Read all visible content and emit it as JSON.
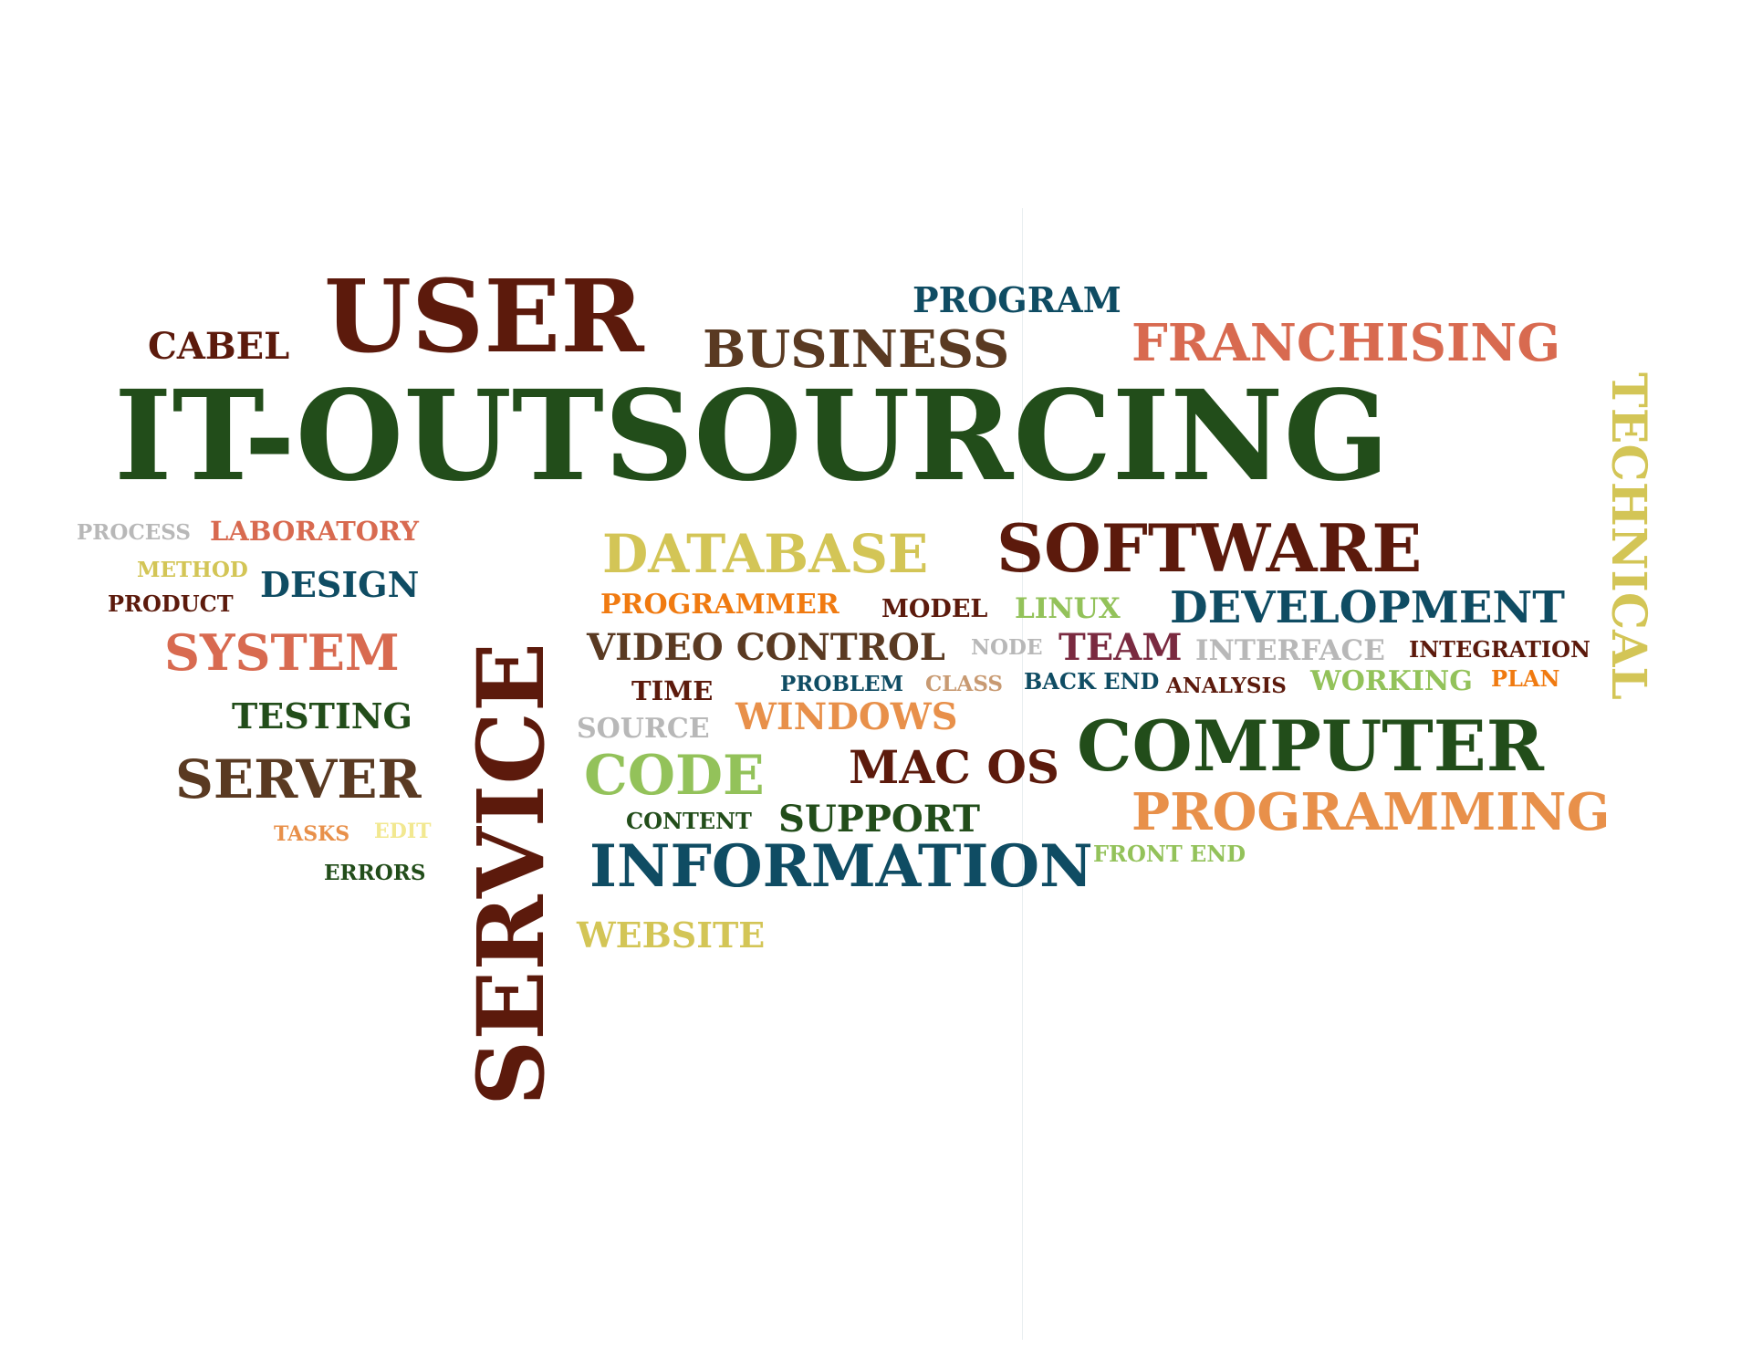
{
  "colors": {
    "dark_red": "#5c1a0c",
    "brown": "#5a3a22",
    "dark_green": "#224d1a",
    "teal": "#0f4c63",
    "salmon": "#d86a50",
    "orange": "#f07a10",
    "light_orange": "#e8904a",
    "yellow": "#d3c556",
    "light_green": "#93c25a",
    "gray": "#b8b8b8",
    "tan": "#c89a72",
    "maroon": "#7a2a40",
    "pale_yellow": "#f2e890"
  },
  "words": [
    {
      "id": "user",
      "text": "USER",
      "color": "#5c1a0c"
    },
    {
      "id": "program",
      "text": "PROGRAM",
      "color": "#0f4c63"
    },
    {
      "id": "cabel",
      "text": "CABEL",
      "color": "#5c1a0c"
    },
    {
      "id": "business",
      "text": "BUSINESS",
      "color": "#5a3a22"
    },
    {
      "id": "franchising",
      "text": "FRANCHISING",
      "color": "#d86a50"
    },
    {
      "id": "it-outsourcing",
      "text": "IT-OUTSOURCING",
      "color": "#224d1a"
    },
    {
      "id": "technical",
      "text": "TECHNICAL",
      "color": "#d3c556"
    },
    {
      "id": "process",
      "text": "PROCESS",
      "color": "#b8b8b8"
    },
    {
      "id": "laboratory",
      "text": "LABORATORY",
      "color": "#d86a50"
    },
    {
      "id": "method",
      "text": "METHOD",
      "color": "#d3c556"
    },
    {
      "id": "design",
      "text": "DESIGN",
      "color": "#0f4c63"
    },
    {
      "id": "product",
      "text": "PRODUCT",
      "color": "#5c1a0c"
    },
    {
      "id": "system",
      "text": "SYSTEM",
      "color": "#d86a50"
    },
    {
      "id": "testing",
      "text": "TESTING",
      "color": "#224d1a"
    },
    {
      "id": "server",
      "text": "SERVER",
      "color": "#5a3a22"
    },
    {
      "id": "tasks",
      "text": "TASKS",
      "color": "#e8904a"
    },
    {
      "id": "edit",
      "text": "EDIT",
      "color": "#f2e890"
    },
    {
      "id": "errors",
      "text": "ERRORS",
      "color": "#224d1a"
    },
    {
      "id": "service",
      "text": "SERVICE",
      "color": "#5c1a0c"
    },
    {
      "id": "database",
      "text": "DATABASE",
      "color": "#d3c556"
    },
    {
      "id": "software",
      "text": "SOFTWARE",
      "color": "#5c1a0c"
    },
    {
      "id": "programmer",
      "text": "PROGRAMMER",
      "color": "#f07a10"
    },
    {
      "id": "model",
      "text": "MODEL",
      "color": "#5c1a0c"
    },
    {
      "id": "linux",
      "text": "LINUX",
      "color": "#93c25a"
    },
    {
      "id": "development",
      "text": "DEVELOPMENT",
      "color": "#0f4c63"
    },
    {
      "id": "video-control",
      "text": "VIDEO CONTROL",
      "color": "#5a3a22"
    },
    {
      "id": "node",
      "text": "NODE",
      "color": "#b8b8b8"
    },
    {
      "id": "team",
      "text": "TEAM",
      "color": "#7a2a40"
    },
    {
      "id": "interface",
      "text": "INTERFACE",
      "color": "#b8b8b8"
    },
    {
      "id": "integration",
      "text": "INTEGRATION",
      "color": "#5c1a0c"
    },
    {
      "id": "time",
      "text": "TIME",
      "color": "#5c1a0c"
    },
    {
      "id": "problem",
      "text": "PROBLEM",
      "color": "#0f4c63"
    },
    {
      "id": "class",
      "text": "CLASS",
      "color": "#c89a72"
    },
    {
      "id": "back-end",
      "text": "BACK END",
      "color": "#0f4c63"
    },
    {
      "id": "analysis",
      "text": "ANALYSIS",
      "color": "#5c1a0c"
    },
    {
      "id": "working",
      "text": "WORKING",
      "color": "#93c25a"
    },
    {
      "id": "plan",
      "text": "PLAN",
      "color": "#f07a10"
    },
    {
      "id": "source",
      "text": "SOURCE",
      "color": "#b8b8b8"
    },
    {
      "id": "windows",
      "text": "WINDOWS",
      "color": "#e8904a"
    },
    {
      "id": "computer",
      "text": "COMPUTER",
      "color": "#224d1a"
    },
    {
      "id": "code",
      "text": "CODE",
      "color": "#93c25a"
    },
    {
      "id": "mac-os",
      "text": "MAC OS",
      "color": "#5c1a0c"
    },
    {
      "id": "programming",
      "text": "PROGRAMMING",
      "color": "#e8904a"
    },
    {
      "id": "content",
      "text": "CONTENT",
      "color": "#224d1a"
    },
    {
      "id": "support",
      "text": "SUPPORT",
      "color": "#224d1a"
    },
    {
      "id": "front-end",
      "text": "FRONT END",
      "color": "#93c25a"
    },
    {
      "id": "information",
      "text": "INFORMATION",
      "color": "#0f4c63"
    },
    {
      "id": "website",
      "text": "WEBSITE",
      "color": "#d3c556"
    }
  ]
}
